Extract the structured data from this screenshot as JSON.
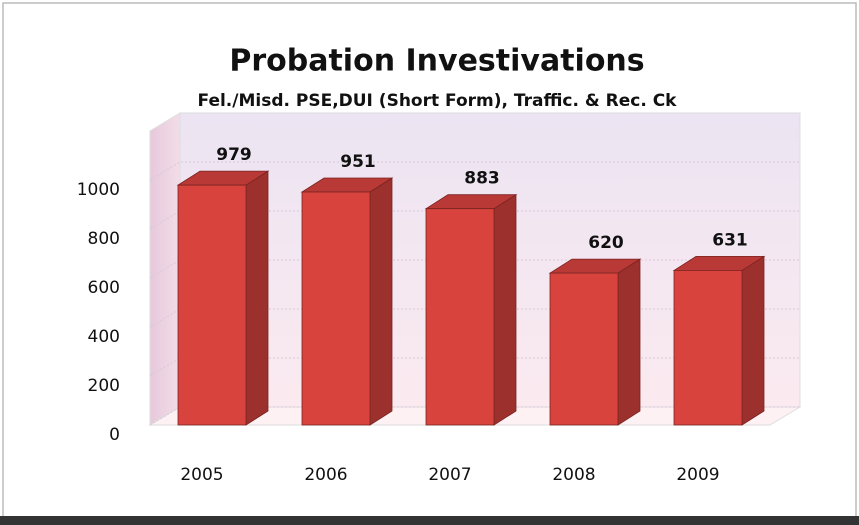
{
  "chart_data": {
    "type": "bar3d",
    "title": "Probation Investivations",
    "subtitle": "Fel./Misd. PSE,DUI (Short Form), Traffic. & Rec. Ck",
    "categories": [
      "2005",
      "2006",
      "2007",
      "2008",
      "2009"
    ],
    "values": [
      979,
      951,
      883,
      620,
      631
    ],
    "color": "#d8433e",
    "ylim": [
      0,
      1200
    ],
    "yticks": [
      0,
      200,
      400,
      600,
      800,
      1000
    ],
    "grid": true
  }
}
